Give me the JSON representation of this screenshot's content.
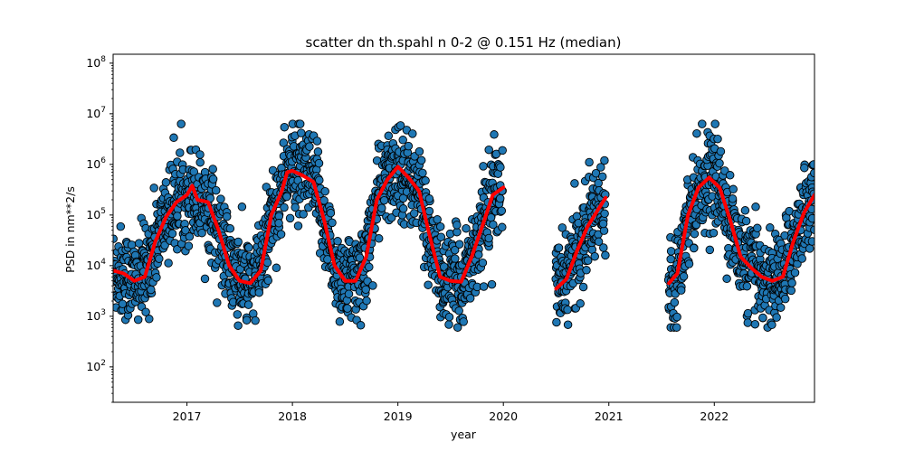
{
  "chart_data": {
    "type": "scatter",
    "title": "scatter dn th.spahl n 0-2 @ 0.151 Hz (median)",
    "xlabel": "year",
    "ylabel": "PSD in nm**2/s",
    "yscale": "log",
    "xlim": [
      2016.3,
      2022.95
    ],
    "ylim": [
      20,
      150000000
    ],
    "xticks": [
      "2017",
      "2018",
      "2019",
      "2020",
      "2021",
      "2022"
    ],
    "xtick_values": [
      2017,
      2018,
      2019,
      2020,
      2021,
      2022
    ],
    "yticks": [
      {
        "value": 100,
        "base": "10",
        "exp": "2"
      },
      {
        "value": 1000,
        "base": "10",
        "exp": "3"
      },
      {
        "value": 10000,
        "base": "10",
        "exp": "4"
      },
      {
        "value": 100000,
        "base": "10",
        "exp": "5"
      },
      {
        "value": 1000000,
        "base": "10",
        "exp": "6"
      },
      {
        "value": 10000000,
        "base": "10",
        "exp": "7"
      },
      {
        "value": 100000000,
        "base": "10",
        "exp": "8"
      }
    ],
    "grid": false,
    "colors": {
      "scatter_fill": "#1f77b4",
      "scatter_edge": "#000000",
      "median_line": "#ff0000"
    },
    "data_ranges": [
      [
        2016.3,
        2020.0
      ],
      [
        2020.5,
        2020.97
      ],
      [
        2021.57,
        2022.95
      ]
    ],
    "median_line": {
      "x": [
        2016.3,
        2016.4,
        2016.5,
        2016.6,
        2016.7,
        2016.8,
        2016.9,
        2017.0,
        2017.05,
        2017.1,
        2017.2,
        2017.3,
        2017.4,
        2017.5,
        2017.6,
        2017.7,
        2017.8,
        2017.9,
        2017.95,
        2018.0,
        2018.1,
        2018.2,
        2018.3,
        2018.4,
        2018.5,
        2018.6,
        2018.7,
        2018.8,
        2018.9,
        2019.0,
        2019.1,
        2019.2,
        2019.3,
        2019.4,
        2019.5,
        2019.6,
        2019.7,
        2019.8,
        2019.9,
        2020.0,
        2020.5,
        2020.6,
        2020.7,
        2020.8,
        2020.9,
        2020.97,
        2021.57,
        2021.65,
        2021.75,
        2021.85,
        2021.95,
        2022.05,
        2022.15,
        2022.25,
        2022.35,
        2022.45,
        2022.55,
        2022.65,
        2022.75,
        2022.85,
        2022.95
      ],
      "y": [
        8000,
        7000,
        5000,
        6000,
        30000,
        90000,
        180000,
        250000,
        380000,
        200000,
        180000,
        50000,
        10000,
        5000,
        4500,
        8000,
        100000,
        300000,
        700000,
        750000,
        600000,
        450000,
        80000,
        10000,
        5000,
        5000,
        15000,
        200000,
        500000,
        900000,
        550000,
        300000,
        40000,
        6000,
        5000,
        4800,
        15000,
        60000,
        250000,
        350000,
        3500,
        5500,
        20000,
        60000,
        130000,
        220000,
        4500,
        7000,
        100000,
        350000,
        550000,
        350000,
        80000,
        15000,
        9000,
        6000,
        5000,
        6000,
        30000,
        110000,
        250000
      ]
    }
  }
}
